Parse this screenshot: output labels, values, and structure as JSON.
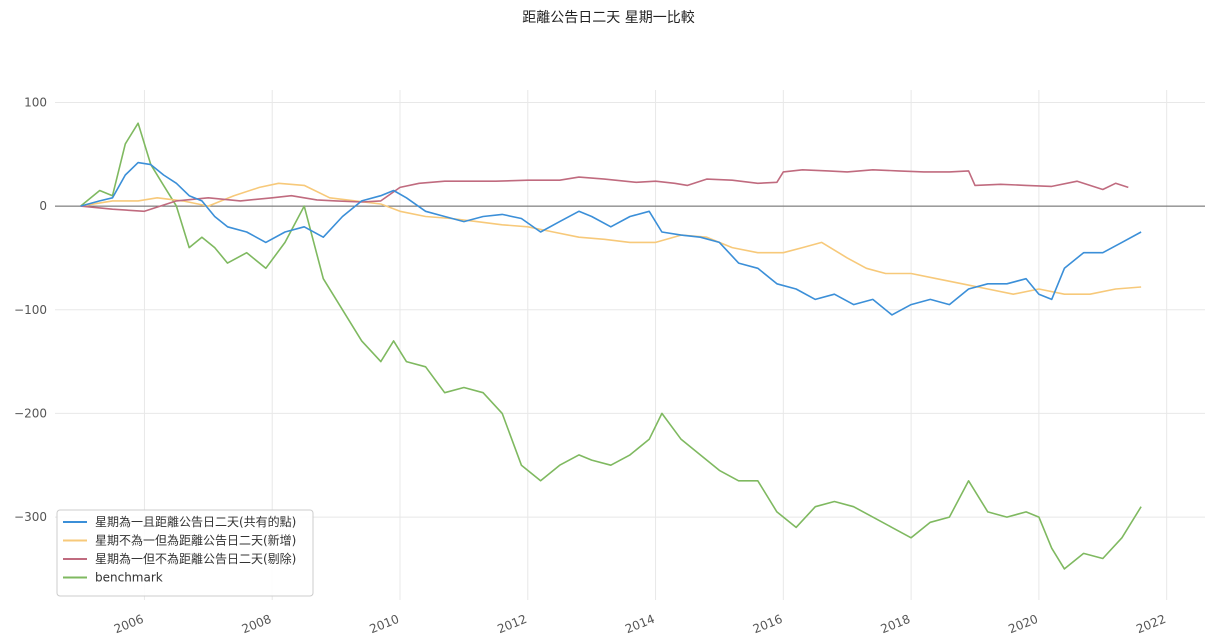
{
  "chart_data": {
    "type": "line",
    "title": "距離公告日二天 星期一比較",
    "xlabel": "",
    "ylabel": "",
    "xlim": [
      2004.6,
      2022.6
    ],
    "ylim": [
      -380,
      112
    ],
    "grid": true,
    "legend_position": "bottom-left",
    "x_ticks": [
      2006,
      2008,
      2010,
      2012,
      2014,
      2016,
      2018,
      2020,
      2022
    ],
    "x_tick_labels": [
      "2006",
      "2008",
      "2010",
      "2012",
      "2014",
      "2016",
      "2018",
      "2020",
      "2022"
    ],
    "y_ticks": [
      100,
      0,
      -100,
      -200,
      -300
    ],
    "y_tick_labels": [
      "100",
      "0",
      "−100",
      "−200",
      "−300"
    ],
    "series": [
      {
        "name": "星期為一且距離公告日二天(共有的點)",
        "color": "#3b8fd8",
        "x": [
          2005.0,
          2005.3,
          2005.5,
          2005.7,
          2005.9,
          2006.1,
          2006.3,
          2006.5,
          2006.7,
          2006.9,
          2007.1,
          2007.3,
          2007.6,
          2007.9,
          2008.2,
          2008.5,
          2008.8,
          2009.1,
          2009.4,
          2009.7,
          2009.9,
          2010.1,
          2010.4,
          2010.7,
          2011.0,
          2011.3,
          2011.6,
          2011.9,
          2012.2,
          2012.5,
          2012.8,
          2013.0,
          2013.3,
          2013.6,
          2013.9,
          2014.1,
          2014.4,
          2014.7,
          2015.0,
          2015.3,
          2015.6,
          2015.9,
          2016.2,
          2016.5,
          2016.8,
          2017.1,
          2017.4,
          2017.7,
          2018.0,
          2018.3,
          2018.6,
          2018.9,
          2019.2,
          2019.5,
          2019.8,
          2020.0,
          2020.2,
          2020.4,
          2020.7,
          2021.0,
          2021.3,
          2021.6
        ],
        "y": [
          0,
          5,
          8,
          30,
          42,
          40,
          30,
          22,
          10,
          5,
          -10,
          -20,
          -25,
          -35,
          -25,
          -20,
          -30,
          -10,
          5,
          10,
          15,
          8,
          -5,
          -10,
          -15,
          -10,
          -8,
          -12,
          -25,
          -15,
          -5,
          -10,
          -20,
          -10,
          -5,
          -25,
          -28,
          -30,
          -35,
          -55,
          -60,
          -75,
          -80,
          -90,
          -85,
          -95,
          -90,
          -105,
          -95,
          -90,
          -95,
          -80,
          -75,
          -75,
          -70,
          -85,
          -90,
          -60,
          -45,
          -45,
          -35,
          -25
        ]
      },
      {
        "name": "星期不為一但為距離公告日二天(新增)",
        "color": "#f7c97a",
        "x": [
          2005.0,
          2005.5,
          2005.9,
          2006.2,
          2006.6,
          2007.0,
          2007.4,
          2007.8,
          2008.1,
          2008.5,
          2008.9,
          2009.3,
          2009.7,
          2010.0,
          2010.4,
          2010.8,
          2011.2,
          2011.6,
          2012.0,
          2012.4,
          2012.8,
          2013.2,
          2013.6,
          2014.0,
          2014.4,
          2014.8,
          2015.2,
          2015.6,
          2016.0,
          2016.3,
          2016.6,
          2017.0,
          2017.3,
          2017.6,
          2018.0,
          2018.4,
          2018.8,
          2019.2,
          2019.6,
          2020.0,
          2020.4,
          2020.8,
          2021.2,
          2021.6
        ],
        "y": [
          0,
          5,
          5,
          8,
          5,
          0,
          10,
          18,
          22,
          20,
          8,
          5,
          2,
          -5,
          -10,
          -12,
          -15,
          -18,
          -20,
          -25,
          -30,
          -32,
          -35,
          -35,
          -28,
          -30,
          -40,
          -45,
          -45,
          -40,
          -35,
          -50,
          -60,
          -65,
          -65,
          -70,
          -75,
          -80,
          -85,
          -80,
          -85,
          -85,
          -80,
          -78
        ]
      },
      {
        "name": "星期為一但不為距離公告日二天(剔除)",
        "color": "#c06b7f",
        "x": [
          2005.0,
          2005.5,
          2006.0,
          2006.5,
          2007.0,
          2007.5,
          2008.0,
          2008.3,
          2008.7,
          2009.0,
          2009.4,
          2009.7,
          2010.0,
          2010.3,
          2010.7,
          2011.0,
          2011.5,
          2012.0,
          2012.5,
          2012.8,
          2013.2,
          2013.7,
          2014.0,
          2014.3,
          2014.5,
          2014.8,
          2015.2,
          2015.6,
          2015.9,
          2016.0,
          2016.3,
          2016.7,
          2017.0,
          2017.4,
          2017.8,
          2018.2,
          2018.6,
          2018.9,
          2019.0,
          2019.4,
          2019.8,
          2020.2,
          2020.6,
          2021.0,
          2021.2,
          2021.4
        ],
        "y": [
          0,
          -3,
          -5,
          5,
          8,
          5,
          8,
          10,
          6,
          5,
          4,
          5,
          18,
          22,
          24,
          24,
          24,
          25,
          25,
          28,
          26,
          23,
          24,
          22,
          20,
          26,
          25,
          22,
          23,
          33,
          35,
          34,
          33,
          35,
          34,
          33,
          33,
          34,
          20,
          21,
          20,
          19,
          24,
          16,
          22,
          18
        ]
      },
      {
        "name": "benchmark",
        "color": "#7fb960",
        "x": [
          2005.0,
          2005.3,
          2005.5,
          2005.7,
          2005.9,
          2006.1,
          2006.3,
          2006.5,
          2006.7,
          2006.9,
          2007.1,
          2007.3,
          2007.6,
          2007.9,
          2008.2,
          2008.5,
          2008.8,
          2009.1,
          2009.4,
          2009.7,
          2009.9,
          2010.1,
          2010.4,
          2010.7,
          2011.0,
          2011.3,
          2011.6,
          2011.9,
          2012.2,
          2012.5,
          2012.8,
          2013.0,
          2013.3,
          2013.6,
          2013.9,
          2014.1,
          2014.4,
          2014.7,
          2015.0,
          2015.3,
          2015.6,
          2015.9,
          2016.2,
          2016.5,
          2016.8,
          2017.1,
          2017.4,
          2017.7,
          2018.0,
          2018.3,
          2018.6,
          2018.9,
          2019.2,
          2019.5,
          2019.8,
          2020.0,
          2020.2,
          2020.4,
          2020.7,
          2021.0,
          2021.3,
          2021.6
        ],
        "y": [
          0,
          15,
          10,
          60,
          80,
          40,
          20,
          0,
          -40,
          -30,
          -40,
          -55,
          -45,
          -60,
          -35,
          0,
          -70,
          -100,
          -130,
          -150,
          -130,
          -150,
          -155,
          -180,
          -175,
          -180,
          -200,
          -250,
          -265,
          -250,
          -240,
          -245,
          -250,
          -240,
          -225,
          -200,
          -225,
          -240,
          -255,
          -265,
          -265,
          -295,
          -310,
          -290,
          -285,
          -290,
          -300,
          -310,
          -320,
          -305,
          -300,
          -265,
          -295,
          -300,
          -295,
          -300,
          -330,
          -350,
          -335,
          -340,
          -320,
          -290
        ]
      }
    ]
  }
}
